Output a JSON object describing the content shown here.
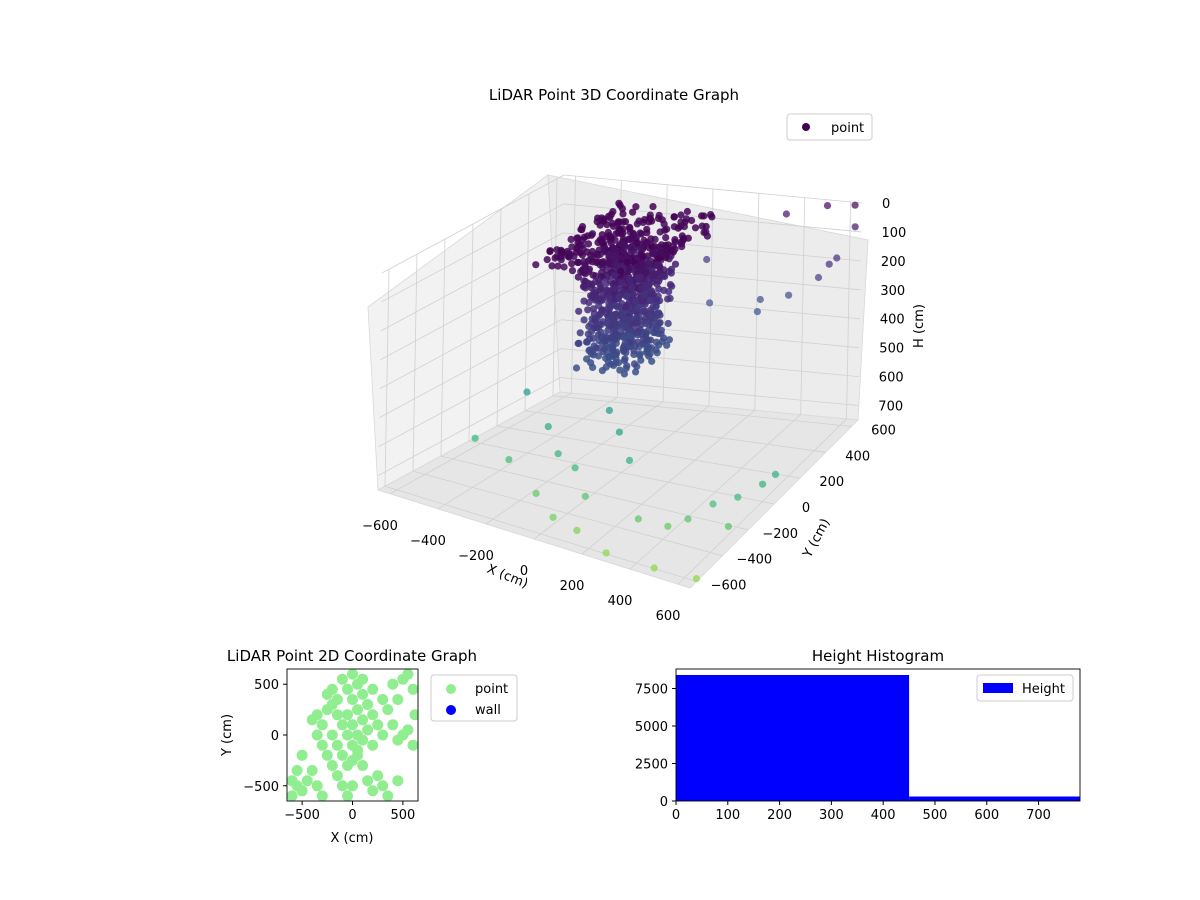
{
  "chart_data": [
    {
      "type": "scatter",
      "title": "LiDAR Point 3D Coordinate Graph",
      "xlabel": "X (cm)",
      "ylabel": "Y (cm)",
      "zlabel": "H (cm)",
      "xlim": [
        -650,
        650
      ],
      "ylim": [
        -650,
        650
      ],
      "zlim": [
        750,
        0
      ],
      "x_ticks": [
        "−600",
        "−400",
        "−200",
        "0",
        "200",
        "400",
        "600"
      ],
      "y_ticks": [
        "−600",
        "−400",
        "−200",
        "0",
        "200",
        "400",
        "600"
      ],
      "z_ticks": [
        "0",
        "100",
        "200",
        "300",
        "400",
        "500",
        "600",
        "700"
      ],
      "legend": [
        "point"
      ],
      "legend_placement": "top-right",
      "grid": true,
      "colormap": "viridis",
      "colors": {
        "point_legend": "#440154"
      },
      "series": [
        {
          "name": "point",
          "dense_cluster": {
            "x_range": [
              -300,
              150
            ],
            "y_range": [
              -150,
              450
            ],
            "h_range": [
              0,
              420
            ],
            "approx_count": 8000
          },
          "points": [
            {
              "x": -50,
              "y": -550,
              "h": 640
            },
            {
              "x": 150,
              "y": -600,
              "h": 700
            },
            {
              "x": 300,
              "y": -650,
              "h": 720
            },
            {
              "x": 420,
              "y": -400,
              "h": 700
            },
            {
              "x": 450,
              "y": -300,
              "h": 710
            },
            {
              "x": 500,
              "y": -200,
              "h": 690
            },
            {
              "x": 550,
              "y": -100,
              "h": 700
            },
            {
              "x": 600,
              "y": 0,
              "h": 690
            },
            {
              "x": 600,
              "y": 100,
              "h": 700
            },
            {
              "x": 350,
              "y": -500,
              "h": 650
            },
            {
              "x": 200,
              "y": -300,
              "h": 560
            },
            {
              "x": 100,
              "y": -200,
              "h": 520
            },
            {
              "x": 0,
              "y": -100,
              "h": 500
            },
            {
              "x": -100,
              "y": -300,
              "h": 600
            },
            {
              "x": -250,
              "y": -400,
              "h": 620
            },
            {
              "x": 500,
              "y": -650,
              "h": 720
            },
            {
              "x": 620,
              "y": -300,
              "h": 700
            },
            {
              "x": 650,
              "y": -600,
              "h": 740
            },
            {
              "x": 300,
              "y": 500,
              "h": 300
            },
            {
              "x": 450,
              "y": 450,
              "h": 250
            },
            {
              "x": 550,
              "y": 500,
              "h": 200
            },
            {
              "x": 600,
              "y": 550,
              "h": 150
            },
            {
              "x": 650,
              "y": 600,
              "h": 60
            },
            {
              "x": 650,
              "y": 400,
              "h": 100
            },
            {
              "x": 400,
              "y": 300,
              "h": 250
            },
            {
              "x": 250,
              "y": 200,
              "h": 200
            },
            {
              "x": 150,
              "y": 350,
              "h": 120
            },
            {
              "x": 350,
              "y": 600,
              "h": 40
            },
            {
              "x": 500,
              "y": 650,
              "h": 20
            },
            {
              "x": 620,
              "y": 650,
              "h": 10
            },
            {
              "x": -200,
              "y": -200,
              "h": 560
            },
            {
              "x": -350,
              "y": -100,
              "h": 500
            },
            {
              "x": -450,
              "y": -300,
              "h": 620
            },
            {
              "x": 0,
              "y": -350,
              "h": 610
            },
            {
              "x": 100,
              "y": -450,
              "h": 650
            },
            {
              "x": 50,
              "y": -600,
              "h": 680
            }
          ]
        }
      ]
    },
    {
      "type": "scatter",
      "title": "LiDAR Point 2D Coordinate Graph",
      "xlabel": "X (cm)",
      "ylabel": "Y (cm)",
      "xlim": [
        -650,
        650
      ],
      "ylim": [
        -650,
        650
      ],
      "x_ticks": [
        "−500",
        "0",
        "500"
      ],
      "y_ticks": [
        "−500",
        "0",
        "500"
      ],
      "legend_placement": "outside-right",
      "colors": {
        "point": "#90ee90",
        "wall": "#0000ff"
      },
      "series": [
        {
          "name": "point",
          "points": [
            [
              -250,
              400
            ],
            [
              -200,
              300
            ],
            [
              -150,
              200
            ],
            [
              -100,
              100
            ],
            [
              -50,
              0
            ],
            [
              0,
              -100
            ],
            [
              50,
              -200
            ],
            [
              100,
              -300
            ],
            [
              -300,
              100
            ],
            [
              -350,
              0
            ],
            [
              -300,
              -100
            ],
            [
              -250,
              -200
            ],
            [
              -200,
              -300
            ],
            [
              -150,
              -400
            ],
            [
              -100,
              -500
            ],
            [
              -50,
              -600
            ],
            [
              0,
              600
            ],
            [
              50,
              500
            ],
            [
              100,
              400
            ],
            [
              150,
              300
            ],
            [
              200,
              200
            ],
            [
              250,
              100
            ],
            [
              300,
              0
            ],
            [
              200,
              -100
            ],
            [
              -100,
              550
            ],
            [
              -50,
              450
            ],
            [
              0,
              350
            ],
            [
              50,
              250
            ],
            [
              100,
              150
            ],
            [
              150,
              50
            ],
            [
              100,
              -50
            ],
            [
              50,
              -150
            ],
            [
              -400,
              -350
            ],
            [
              -450,
              -450
            ],
            [
              -500,
              -550
            ],
            [
              -600,
              -600
            ],
            [
              -550,
              -500
            ],
            [
              -350,
              -500
            ],
            [
              -300,
              -600
            ],
            [
              400,
              500
            ],
            [
              500,
              550
            ],
            [
              550,
              600
            ],
            [
              600,
              450
            ],
            [
              620,
              200
            ],
            [
              450,
              350
            ],
            [
              350,
              250
            ],
            [
              250,
              -400
            ],
            [
              300,
              -500
            ],
            [
              350,
              -600
            ],
            [
              450,
              -450
            ],
            [
              200,
              -550
            ],
            [
              150,
              -450
            ],
            [
              0,
              -500
            ],
            [
              -200,
              0
            ],
            [
              -150,
              -100
            ],
            [
              -100,
              -200
            ],
            [
              -50,
              -300
            ],
            [
              0,
              -250
            ],
            [
              50,
              0
            ],
            [
              0,
              100
            ],
            [
              -50,
              200
            ],
            [
              -200,
              450
            ],
            [
              -150,
              350
            ],
            [
              -250,
              250
            ],
            [
              -350,
              200
            ],
            [
              -400,
              150
            ],
            [
              100,
              550
            ],
            [
              200,
              450
            ],
            [
              300,
              350
            ],
            [
              500,
              0
            ],
            [
              450,
              -50
            ],
            [
              400,
              100
            ],
            [
              600,
              -100
            ],
            [
              550,
              50
            ],
            [
              -500,
              -200
            ],
            [
              -550,
              -350
            ],
            [
              -600,
              -450
            ]
          ]
        },
        {
          "name": "wall",
          "points": []
        }
      ]
    },
    {
      "type": "bar",
      "title": "Height Histogram",
      "xlim": [
        0,
        780
      ],
      "ylim": [
        0,
        8800
      ],
      "x_ticks": [
        "0",
        "100",
        "200",
        "300",
        "400",
        "500",
        "600",
        "700"
      ],
      "y_ticks": [
        "0",
        "2500",
        "5000",
        "7500"
      ],
      "legend_placement": "top-right",
      "colors": {
        "bar": "#0000ff"
      },
      "series": [
        {
          "name": "Height",
          "bins": [
            {
              "start": 0,
              "end": 450,
              "count": 8400
            },
            {
              "start": 450,
              "end": 780,
              "count": 300
            }
          ]
        }
      ]
    }
  ]
}
